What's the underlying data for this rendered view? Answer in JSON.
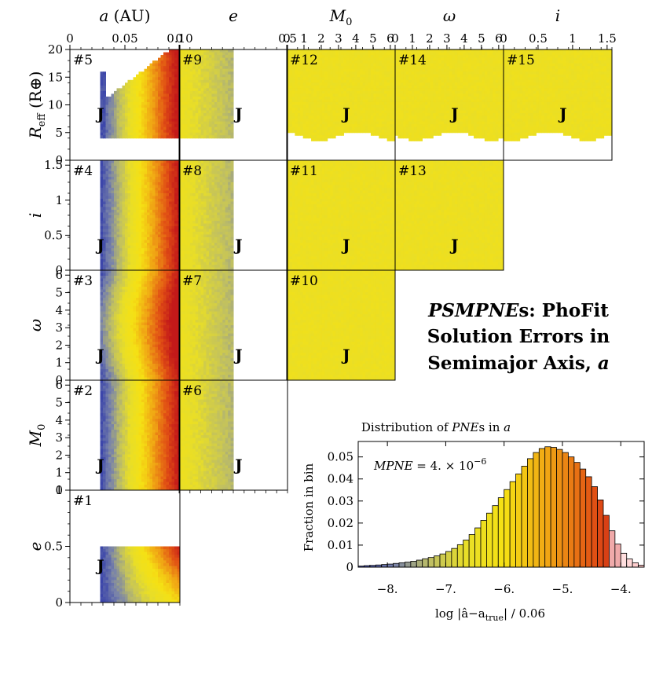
{
  "figure": {
    "title_line1_italic": "PSMPNE",
    "title_line1_rest": "s: PhoFit",
    "title_line2": "Solution Errors in",
    "title_line3_text": "Semimajor Axis, ",
    "title_line3_var": "a"
  },
  "corner_plot": {
    "type": "heatmap",
    "jupiter_marker": "J",
    "columns": [
      {
        "key": "a",
        "label_var": "a",
        "label_unit": " (AU)",
        "ticks": [
          "0",
          "0.05",
          "0.10"
        ],
        "range": [
          0,
          0.1
        ]
      },
      {
        "key": "e",
        "label_var": "e",
        "label_unit": "",
        "ticks": [
          "0",
          "0.5"
        ],
        "range": [
          0,
          0.5
        ]
      },
      {
        "key": "M0",
        "label_var": "M",
        "label_sub": "0",
        "label_unit": "",
        "ticks": [
          "0",
          "1",
          "2",
          "3",
          "4",
          "5",
          "6"
        ],
        "range": [
          0,
          6.28
        ]
      },
      {
        "key": "w",
        "label_var": "ω",
        "label_unit": "",
        "ticks": [
          "0",
          "1",
          "2",
          "3",
          "4",
          "5",
          "6"
        ],
        "range": [
          0,
          6.28
        ]
      },
      {
        "key": "i",
        "label_var": "i",
        "label_unit": "",
        "ticks": [
          "0",
          "0.5",
          "1",
          "1.5"
        ],
        "range": [
          0,
          1.57
        ]
      }
    ],
    "rows": [
      {
        "key": "Reff",
        "label_var": "R",
        "label_sub": "eff",
        "label_unit": " (R⊕)",
        "ticks": [
          "0",
          "5",
          "10",
          "15",
          "20"
        ],
        "range": [
          0,
          20
        ]
      },
      {
        "key": "i",
        "label_var": "i",
        "label_unit": "",
        "ticks": [
          "0",
          "0.5",
          "1",
          "1.5"
        ],
        "range": [
          0,
          1.57
        ]
      },
      {
        "key": "w",
        "label_var": "ω",
        "label_unit": "",
        "ticks": [
          "0",
          "1",
          "2",
          "3",
          "4",
          "5",
          "6"
        ],
        "range": [
          0,
          6.28
        ]
      },
      {
        "key": "M0",
        "label_var": "M",
        "label_sub": "0",
        "label_unit": "",
        "ticks": [
          "0",
          "1",
          "2",
          "3",
          "4",
          "5",
          "6"
        ],
        "range": [
          0,
          6.28
        ]
      },
      {
        "key": "e",
        "label_var": "e",
        "label_unit": "",
        "ticks": [
          "0",
          "0.5",
          "1"
        ],
        "range": [
          0,
          1
        ]
      }
    ],
    "panels": [
      {
        "id": "#1",
        "row": 4,
        "col": 0,
        "fill": "a_e"
      },
      {
        "id": "#2",
        "row": 3,
        "col": 0,
        "fill": "a"
      },
      {
        "id": "#3",
        "row": 2,
        "col": 0,
        "fill": "a_w"
      },
      {
        "id": "#4",
        "row": 1,
        "col": 0,
        "fill": "a"
      },
      {
        "id": "#5",
        "row": 0,
        "col": 0,
        "fill": "a_R"
      },
      {
        "id": "#6",
        "row": 3,
        "col": 1,
        "fill": "e"
      },
      {
        "id": "#7",
        "row": 2,
        "col": 1,
        "fill": "e"
      },
      {
        "id": "#8",
        "row": 1,
        "col": 1,
        "fill": "e"
      },
      {
        "id": "#9",
        "row": 0,
        "col": 1,
        "fill": "e_R"
      },
      {
        "id": "#10",
        "row": 2,
        "col": 2,
        "fill": "flat"
      },
      {
        "id": "#11",
        "row": 1,
        "col": 2,
        "fill": "flat"
      },
      {
        "id": "#12",
        "row": 0,
        "col": 2,
        "fill": "flat_R"
      },
      {
        "id": "#13",
        "row": 1,
        "col": 3,
        "fill": "flat"
      },
      {
        "id": "#14",
        "row": 0,
        "col": 3,
        "fill": "flat_R"
      },
      {
        "id": "#15",
        "row": 0,
        "col": 4,
        "fill": "flat_R"
      }
    ]
  },
  "chart_data": {
    "type": "bar",
    "title_text": "Distribution of ",
    "title_italic": "PNE",
    "title_suffix": "s in ",
    "title_var": "a",
    "ylabel": "Fraction in bin",
    "xlabel_text": "log |â−a",
    "xlabel_sub": "true",
    "xlabel_rest": "| / 0.06",
    "annotation_var": "MPNE",
    "annotation_value": " = 4. × 10",
    "annotation_exp": "−6",
    "xlim": [
      -8.5,
      -3.6
    ],
    "ylim": [
      0,
      0.057
    ],
    "xticks": [
      -8,
      -7,
      -6,
      -5,
      -4
    ],
    "xtick_labels": [
      "−8.",
      "−7.",
      "−6.",
      "−5.",
      "−4."
    ],
    "yticks": [
      0,
      0.01,
      0.02,
      0.03,
      0.04,
      0.05
    ],
    "ytick_labels": [
      "0",
      "0.01",
      "0.02",
      "0.03",
      "0.04",
      "0.05"
    ],
    "bin_width": 0.1,
    "bin_start": -8.5,
    "values": [
      0.0005,
      0.0007,
      0.0008,
      0.001,
      0.0012,
      0.0014,
      0.0017,
      0.002,
      0.0023,
      0.0027,
      0.0032,
      0.0038,
      0.0044,
      0.0051,
      0.006,
      0.0071,
      0.0085,
      0.0102,
      0.0123,
      0.0148,
      0.0178,
      0.0212,
      0.0245,
      0.0279,
      0.0315,
      0.0352,
      0.0388,
      0.0423,
      0.0458,
      0.0492,
      0.052,
      0.0538,
      0.0546,
      0.0543,
      0.0534,
      0.052,
      0.05,
      0.0475,
      0.0445,
      0.041,
      0.0365,
      0.0305,
      0.0235,
      0.0165,
      0.0105,
      0.0063,
      0.0037,
      0.002,
      0.0009
    ]
  }
}
